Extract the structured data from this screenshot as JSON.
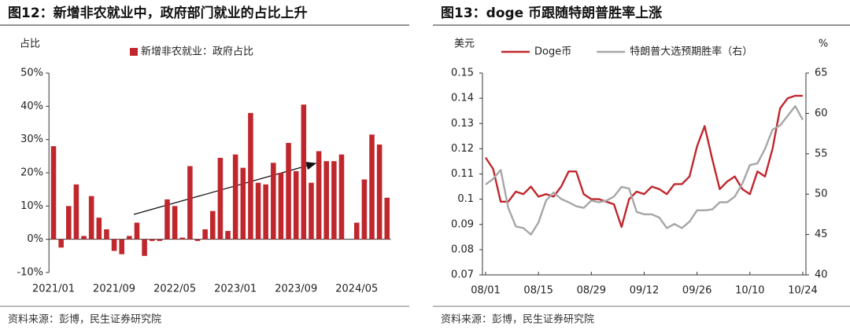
{
  "chart_data": [
    {
      "type": "bar",
      "title": "图12：新增非农就业中，政府部门就业的占比上升",
      "ylabel": "占比",
      "source": "资料来源：彭博，民生证券研究院",
      "categories": [
        "2021/01",
        null,
        null,
        null,
        null,
        null,
        null,
        null,
        "2021/09",
        null,
        null,
        null,
        null,
        null,
        null,
        null,
        "2022/05",
        null,
        null,
        null,
        null,
        null,
        null,
        null,
        "2023/01",
        null,
        null,
        null,
        null,
        null,
        null,
        null,
        "2023/09",
        null,
        null,
        null,
        null,
        null,
        null,
        null,
        "2024/05",
        null,
        null,
        null,
        null
      ],
      "series": [
        {
          "name": "新增非农就业：政府占比",
          "color": "#c0272d",
          "values": [
            28,
            -2.5,
            10,
            16.5,
            1,
            13,
            6.5,
            3,
            -3.5,
            -4.5,
            1,
            5,
            -5,
            -0.5,
            -0.5,
            12,
            10,
            0.5,
            22,
            -0.5,
            3,
            8.5,
            24.5,
            2.5,
            25.5,
            21.5,
            38,
            17,
            16.5,
            23,
            20,
            29,
            20.5,
            40.5,
            17,
            26.5,
            23.5,
            23.5,
            25.5,
            null,
            5,
            18,
            31.5,
            28.5,
            12.5
          ]
        }
      ],
      "ylim": [
        -10,
        50
      ],
      "yticks": [
        {
          "value": -10,
          "label": "-10%"
        },
        {
          "value": 0,
          "label": "0%"
        },
        {
          "value": 10,
          "label": "10%"
        },
        {
          "value": 20,
          "label": "20%"
        },
        {
          "value": 30,
          "label": "30%"
        },
        {
          "value": 40,
          "label": "40%"
        },
        {
          "value": 50,
          "label": "50%"
        }
      ],
      "grid": false
    },
    {
      "type": "line",
      "title": "图13：doge 币跟随特朗普胜率上涨",
      "ylabel": "美元",
      "y2label": "%",
      "source": "资料来源：彭博，民生证券研究院",
      "categories": [
        "08/01",
        null,
        null,
        null,
        null,
        null,
        null,
        "08/15",
        null,
        null,
        null,
        null,
        null,
        null,
        "08/29",
        null,
        null,
        null,
        null,
        null,
        null,
        "09/12",
        null,
        null,
        null,
        null,
        null,
        null,
        "09/26",
        null,
        null,
        null,
        null,
        null,
        null,
        "10/10",
        null,
        null,
        null,
        null,
        null,
        null,
        "10/24"
      ],
      "series": [
        {
          "name": "Doge币",
          "color": "#c0272d",
          "values": [
            0.1165,
            0.112,
            0.099,
            0.099,
            0.103,
            0.102,
            0.105,
            0.101,
            0.102,
            0.101,
            0.105,
            0.111,
            0.111,
            0.102,
            0.1,
            0.1,
            0.099,
            0.098,
            0.089,
            0.1,
            0.103,
            0.102,
            0.105,
            0.104,
            0.102,
            0.106,
            0.106,
            0.109,
            0.121,
            0.129,
            0.116,
            0.104,
            0.107,
            0.109,
            0.104,
            0.102,
            0.111,
            0.109,
            0.12,
            0.136,
            0.14,
            0.141,
            0.141
          ]
        },
        {
          "name": "特朗普大选预期胜率（右）",
          "color": "#a6a6a6",
          "axis": "y2",
          "values": [
            51.2,
            51.9,
            53,
            48.3,
            46,
            45.8,
            45,
            46.5,
            49.2,
            50.2,
            49.4,
            49,
            48.5,
            48.3,
            49.2,
            49,
            49.2,
            49.7,
            50.9,
            50.7,
            47.8,
            47.5,
            47.5,
            47.1,
            45.8,
            46.3,
            45.8,
            46.6,
            48,
            48,
            48.1,
            49,
            49,
            49.7,
            51.3,
            53.6,
            53.8,
            55.6,
            58,
            58.5,
            59.7,
            60.9,
            59.2
          ]
        }
      ],
      "ylim": [
        0.07,
        0.15
      ],
      "yticks": [
        0.07,
        0.08,
        0.09,
        0.1,
        0.11,
        0.12,
        0.13,
        0.14,
        0.15
      ],
      "y2lim": [
        40,
        65
      ],
      "y2ticks": [
        40,
        45,
        50,
        55,
        60,
        65
      ],
      "grid": false
    }
  ]
}
